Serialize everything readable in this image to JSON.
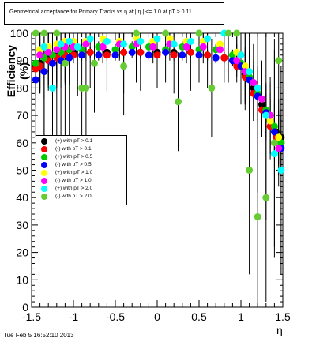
{
  "title": "Geometrical acceptance for Primary Tracks vs    η at |   η | <= 1.0 at pT > 0.11",
  "footer": "Tue Feb  5 16:52:10 2013",
  "chart_data": {
    "type": "scatter",
    "xlabel": "η",
    "ylabel": "Efficiency (%)",
    "xlim": [
      -1.5,
      1.5
    ],
    "ylim": [
      0,
      100
    ],
    "xticks": [
      "-1.5",
      "-1",
      "-0.5",
      "0",
      "0.5",
      "1",
      "1.5"
    ],
    "yticks": [
      "0",
      "10",
      "20",
      "30",
      "40",
      "50",
      "60",
      "70",
      "80",
      "90",
      "100"
    ],
    "legend_position": "left-middle",
    "series": [
      {
        "name": "(+) with pT > 0.1",
        "color": "#000000",
        "x": [
          -1.45,
          -1.4,
          -1.3,
          -1.2,
          -1.1,
          -1.0,
          -0.8,
          -0.6,
          -0.4,
          -0.2,
          0.0,
          0.2,
          0.4,
          0.6,
          0.8,
          0.95,
          1.05,
          1.15,
          1.25,
          1.35,
          1.42,
          1.48
        ],
        "y": [
          88,
          89,
          91,
          92,
          92,
          93,
          93,
          93,
          93,
          93,
          93,
          93,
          93,
          92,
          91,
          89,
          85,
          80,
          74,
          68,
          64,
          62
        ]
      },
      {
        "name": "(-) with pT > 0.1",
        "color": "#ff0000",
        "x": [
          -1.45,
          -1.4,
          -1.3,
          -1.2,
          -1.1,
          -1.0,
          -0.8,
          -0.6,
          -0.4,
          -0.2,
          0.0,
          0.2,
          0.4,
          0.6,
          0.8,
          0.95,
          1.05,
          1.15,
          1.25,
          1.35,
          1.42,
          1.48
        ],
        "y": [
          87,
          88,
          90,
          91,
          92,
          92,
          93,
          92,
          93,
          93,
          92,
          92,
          93,
          92,
          91,
          88,
          84,
          78,
          72,
          66,
          62,
          60
        ]
      },
      {
        "name": "(+) with pT > 0.5",
        "color": "#00cc00",
        "x": [
          -1.45,
          -1.35,
          -1.25,
          -1.15,
          -1.05,
          -0.9,
          -0.7,
          -0.5,
          -0.3,
          -0.1,
          0.1,
          0.3,
          0.5,
          0.7,
          0.9,
          1.0,
          1.1,
          1.2,
          1.3,
          1.4,
          1.48
        ],
        "y": [
          89,
          91,
          92,
          93,
          94,
          94,
          95,
          94,
          95,
          95,
          94,
          95,
          94,
          94,
          92,
          89,
          84,
          78,
          72,
          66,
          60
        ]
      },
      {
        "name": "(-) with pT > 0.5",
        "color": "#0000ff",
        "x": [
          -1.45,
          -1.35,
          -1.25,
          -1.15,
          -1.05,
          -0.9,
          -0.7,
          -0.5,
          -0.3,
          -0.1,
          0.1,
          0.3,
          0.5,
          0.7,
          0.9,
          1.0,
          1.1,
          1.2,
          1.3,
          1.4,
          1.48
        ],
        "y": [
          83,
          86,
          89,
          90,
          91,
          92,
          92,
          92,
          93,
          92,
          93,
          92,
          92,
          91,
          90,
          88,
          83,
          77,
          71,
          64,
          58
        ]
      },
      {
        "name": "(+) with pT > 1.0",
        "color": "#ffff00",
        "x": [
          -1.4,
          -1.3,
          -1.2,
          -1.1,
          -1.0,
          -0.85,
          -0.65,
          -0.45,
          -0.25,
          -0.05,
          0.15,
          0.35,
          0.55,
          0.75,
          0.95,
          1.05,
          1.15,
          1.25,
          1.35,
          1.45
        ],
        "y": [
          94,
          95,
          96,
          97,
          97,
          97,
          98,
          97,
          98,
          97,
          98,
          97,
          97,
          96,
          93,
          88,
          82,
          76,
          68,
          62
        ]
      },
      {
        "name": "(-) with pT > 1.0",
        "color": "#ff00ff",
        "x": [
          -1.4,
          -1.3,
          -1.2,
          -1.1,
          -1.0,
          -0.85,
          -0.65,
          -0.45,
          -0.25,
          -0.05,
          0.15,
          0.35,
          0.55,
          0.75,
          0.95,
          1.05,
          1.15,
          1.25,
          1.35,
          1.45
        ],
        "y": [
          92,
          93,
          94,
          95,
          95,
          96,
          95,
          96,
          96,
          95,
          96,
          95,
          95,
          94,
          90,
          86,
          82,
          76,
          70,
          58
        ]
      },
      {
        "name": "(+) with pT > 2.0",
        "color": "#00ffff",
        "x": [
          -1.35,
          -1.25,
          -1.15,
          -1.05,
          -0.95,
          -0.8,
          -0.6,
          -0.4,
          -0.2,
          0.0,
          0.2,
          0.4,
          0.6,
          0.8,
          1.0,
          1.1,
          1.2,
          1.3,
          1.4,
          1.48
        ],
        "y": [
          95,
          80,
          96,
          97,
          95,
          98,
          97,
          96,
          97,
          98,
          96,
          97,
          98,
          100,
          92,
          86,
          80,
          70,
          56,
          50
        ]
      },
      {
        "name": "(-) with pT > 2.0",
        "color": "#66cc33",
        "x": [
          -1.45,
          -1.35,
          -1.2,
          -1.1,
          -0.9,
          -0.85,
          -0.75,
          -0.4,
          -0.25,
          0.1,
          0.25,
          0.5,
          0.65,
          0.85,
          0.95,
          1.1,
          1.2,
          1.3,
          1.4,
          1.45
        ],
        "y": [
          100,
          100,
          100,
          89,
          80,
          80,
          89,
          88,
          100,
          100,
          75,
          100,
          80,
          100,
          100,
          50,
          33,
          40,
          60,
          90
        ]
      }
    ]
  }
}
